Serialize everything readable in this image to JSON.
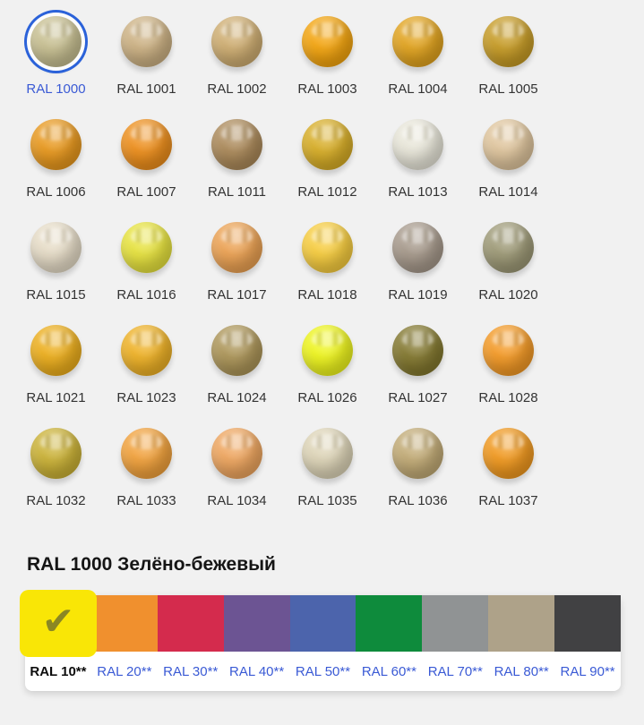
{
  "heading": {
    "text": "RAL 1000 Зелёно-бежевый"
  },
  "palette": {
    "selected_code": "RAL 1000",
    "items": [
      {
        "code": "RAL 1000",
        "color": "#C8C092",
        "selected": true
      },
      {
        "code": "RAL 1001",
        "color": "#CDB284",
        "selected": false
      },
      {
        "code": "RAL 1002",
        "color": "#CFAE72",
        "selected": false
      },
      {
        "code": "RAL 1003",
        "color": "#F4A50F",
        "selected": false
      },
      {
        "code": "RAL 1004",
        "color": "#E2A41F",
        "selected": false
      },
      {
        "code": "RAL 1005",
        "color": "#C79C26",
        "selected": false
      },
      {
        "code": "RAL 1006",
        "color": "#E9991E",
        "selected": false
      },
      {
        "code": "RAL 1007",
        "color": "#EE8F1C",
        "selected": false
      },
      {
        "code": "RAL 1011",
        "color": "#AC8A5A",
        "selected": false
      },
      {
        "code": "RAL 1012",
        "color": "#D8AE27",
        "selected": false
      },
      {
        "code": "RAL 1013",
        "color": "#E9E7DA",
        "selected": false
      },
      {
        "code": "RAL 1014",
        "color": "#E0C69E",
        "selected": false
      },
      {
        "code": "RAL 1015",
        "color": "#E7DDC8",
        "selected": false
      },
      {
        "code": "RAL 1016",
        "color": "#E7E33E",
        "selected": false
      },
      {
        "code": "RAL 1017",
        "color": "#ECA253",
        "selected": false
      },
      {
        "code": "RAL 1018",
        "color": "#F7CD3F",
        "selected": false
      },
      {
        "code": "RAL 1019",
        "color": "#A79A8C",
        "selected": false
      },
      {
        "code": "RAL 1020",
        "color": "#9E9A77",
        "selected": false
      },
      {
        "code": "RAL 1021",
        "color": "#EDAF1D",
        "selected": false
      },
      {
        "code": "RAL 1023",
        "color": "#EFB226",
        "selected": false
      },
      {
        "code": "RAL 1024",
        "color": "#AD9659",
        "selected": false
      },
      {
        "code": "RAL 1026",
        "color": "#EEF51E",
        "selected": false
      },
      {
        "code": "RAL 1027",
        "color": "#83782F",
        "selected": false
      },
      {
        "code": "RAL 1028",
        "color": "#F49A26",
        "selected": false
      },
      {
        "code": "RAL 1032",
        "color": "#CBB236",
        "selected": false
      },
      {
        "code": "RAL 1033",
        "color": "#F2A23C",
        "selected": false
      },
      {
        "code": "RAL 1034",
        "color": "#EFA65F",
        "selected": false
      },
      {
        "code": "RAL 1035",
        "color": "#DED5B8",
        "selected": false
      },
      {
        "code": "RAL 1036",
        "color": "#C2AB76",
        "selected": false
      },
      {
        "code": "RAL 1037",
        "color": "#F1991F",
        "selected": false
      }
    ]
  },
  "groups": {
    "selected_label": "RAL 10**",
    "items": [
      {
        "label": "RAL 10**",
        "color": "#F9E606",
        "selected": true
      },
      {
        "label": "RAL 20**",
        "color": "#F0902E",
        "selected": false
      },
      {
        "label": "RAL 30**",
        "color": "#D42B4D",
        "selected": false
      },
      {
        "label": "RAL 40**",
        "color": "#6C5493",
        "selected": false
      },
      {
        "label": "RAL 50**",
        "color": "#4C64AC",
        "selected": false
      },
      {
        "label": "RAL 60**",
        "color": "#0E8B3C",
        "selected": false
      },
      {
        "label": "RAL 70**",
        "color": "#909394",
        "selected": false
      },
      {
        "label": "RAL 80**",
        "color": "#AEA289",
        "selected": false
      },
      {
        "label": "RAL 90**",
        "color": "#414143",
        "selected": false
      }
    ]
  },
  "icons": {
    "check": "✔"
  },
  "theme": {
    "background": "#F1F1F1",
    "link_blue": "#3A5AD5",
    "ring_blue": "#2B62D9",
    "check_olive": "#8A8724",
    "label_dark": "#333333"
  }
}
